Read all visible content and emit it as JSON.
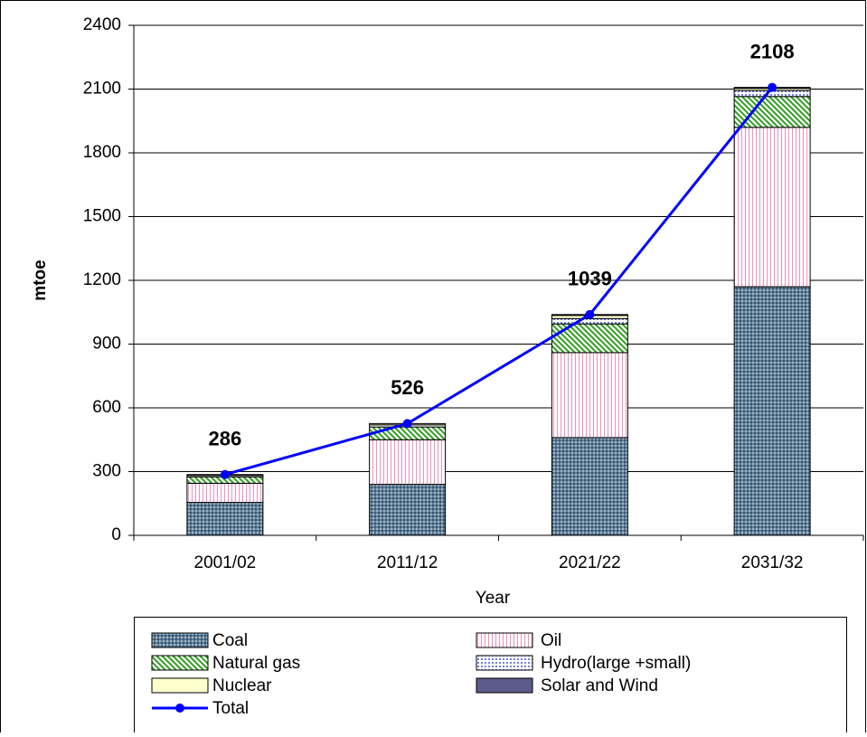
{
  "chart_data": {
    "type": "bar",
    "stacked": true,
    "x_label": "Year",
    "y_label": "mtoe",
    "categories": [
      "2001/02",
      "2011/12",
      "2021/22",
      "2031/32"
    ],
    "ylim": [
      0,
      2400
    ],
    "yticks": [
      0,
      300,
      600,
      900,
      1200,
      1500,
      1800,
      2100,
      2400
    ],
    "series": [
      {
        "name": "Coal",
        "color": "#5f7f99",
        "values": [
          155,
          240,
          460,
          1170
        ]
      },
      {
        "name": "Oil",
        "color": "#f6c9dc",
        "values": [
          90,
          210,
          400,
          750
        ]
      },
      {
        "name": "Natural gas",
        "color": "#3fae2a",
        "values": [
          30,
          60,
          135,
          145
        ]
      },
      {
        "name": "Hydro(large +small)",
        "color": "#7f8ff0",
        "values": [
          7,
          10,
          25,
          28
        ]
      },
      {
        "name": "Nuclear",
        "color": "#ffffcc",
        "values": [
          4,
          6,
          15,
          10
        ]
      },
      {
        "name": "Solar and Wind",
        "color": "#5c5c8c",
        "values": [
          0,
          0,
          4,
          5
        ]
      },
      {
        "name": "Total",
        "type": "line",
        "color": "#0000ff",
        "values": [
          286,
          526,
          1039,
          2108
        ]
      }
    ]
  }
}
